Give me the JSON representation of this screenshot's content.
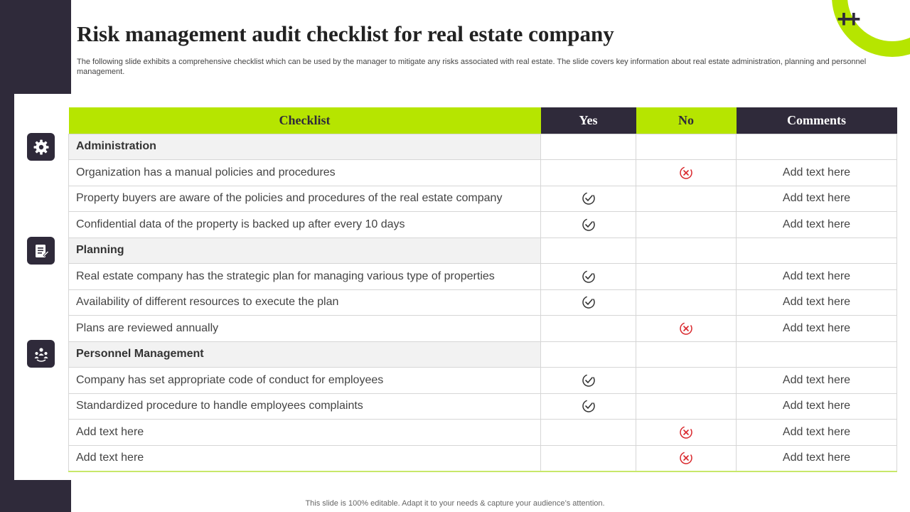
{
  "slide": {
    "title": "Risk management audit checklist for real estate company",
    "subtitle": "The following slide exhibits a comprehensive checklist which can be used by the manager to mitigate any risks associated with real estate. The slide covers key information about real estate administration, planning and personnel management.",
    "footer": "This slide is 100% editable. Adapt it to your needs & capture your audience’s attention.",
    "decoration": "++"
  },
  "colors": {
    "accent": "#b6e500",
    "dark": "#2f2a3a",
    "no_mark": "#d9262b",
    "yes_mark": "#333333"
  },
  "side_icons": [
    "gear-icon",
    "document-icon",
    "team-icon"
  ],
  "table": {
    "headers": {
      "checklist": "Checklist",
      "yes": "Yes",
      "no": "No",
      "comments": "Comments"
    },
    "rows": [
      {
        "type": "section",
        "label": "Administration"
      },
      {
        "type": "item",
        "label": "Organization has a manual policies and procedures",
        "answer": "no",
        "comment": "Add text here"
      },
      {
        "type": "item",
        "label": "Property buyers are aware of the policies and procedures of the real estate company",
        "answer": "yes",
        "comment": "Add text here"
      },
      {
        "type": "item",
        "label": "Confidential data of the property is backed up after every 10 days",
        "answer": "yes",
        "comment": "Add text here"
      },
      {
        "type": "section",
        "label": "Planning"
      },
      {
        "type": "item",
        "label": "Real estate company has the strategic plan for managing various type of properties",
        "answer": "yes",
        "comment": "Add text here"
      },
      {
        "type": "item",
        "label": "Availability of different resources to execute the plan",
        "answer": "yes",
        "comment": "Add text here"
      },
      {
        "type": "item",
        "label": "Plans are reviewed annually",
        "answer": "no",
        "comment": "Add text here"
      },
      {
        "type": "section",
        "label": "Personnel Management"
      },
      {
        "type": "item",
        "label": "Company has set appropriate code of conduct for employees",
        "answer": "yes",
        "comment": "Add text here"
      },
      {
        "type": "item",
        "label": "Standardized procedure to handle employees complaints",
        "answer": "yes",
        "comment": "Add text here"
      },
      {
        "type": "item",
        "label": "Add text here",
        "answer": "no",
        "comment": "Add text here"
      },
      {
        "type": "item",
        "label": "Add text here",
        "answer": "no",
        "comment": "Add text here"
      }
    ]
  }
}
